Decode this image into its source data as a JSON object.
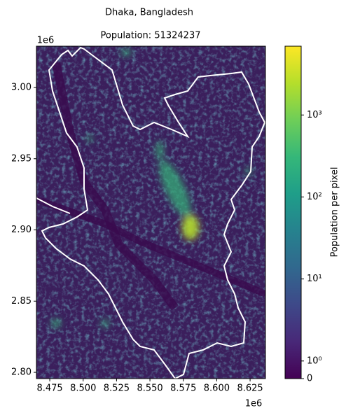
{
  "chart_data": {
    "type": "raster-map",
    "title": "Dhaka, Bangladesh",
    "subtitle": "Population: 51324237",
    "x_offset_label": "1e6",
    "y_offset_label": "1e6",
    "xlim": [
      8.465,
      8.6365
    ],
    "ylim": [
      2.7956,
      3.029
    ],
    "xticks": [
      {
        "value": 8.475,
        "label": "8.475"
      },
      {
        "value": 8.5,
        "label": "8.500"
      },
      {
        "value": 8.525,
        "label": "8.525"
      },
      {
        "value": 8.55,
        "label": "8.550"
      },
      {
        "value": 8.575,
        "label": "8.575"
      },
      {
        "value": 8.6,
        "label": "8.600"
      },
      {
        "value": 8.625,
        "label": "8.625"
      }
    ],
    "yticks": [
      {
        "value": 2.8,
        "label": "2.80"
      },
      {
        "value": 2.85,
        "label": "2.85"
      },
      {
        "value": 2.9,
        "label": "2.90"
      },
      {
        "value": 2.95,
        "label": "2.95"
      },
      {
        "value": 3,
        "label": "3.00"
      }
    ],
    "colorbar": {
      "label": "Population per pixel",
      "scale": "symlog",
      "linthresh": 1,
      "colormap": "viridis",
      "clim": [
        0,
        6900
      ],
      "ticks": [
        0,
        {
          "value": 1,
          "label": "10⁰"
        },
        {
          "value": 10,
          "label": "10¹"
        },
        {
          "value": 100,
          "label": "10²"
        },
        {
          "value": 1000,
          "label": "10³"
        }
      ]
    },
    "boundary_color": "#ffffff"
  }
}
